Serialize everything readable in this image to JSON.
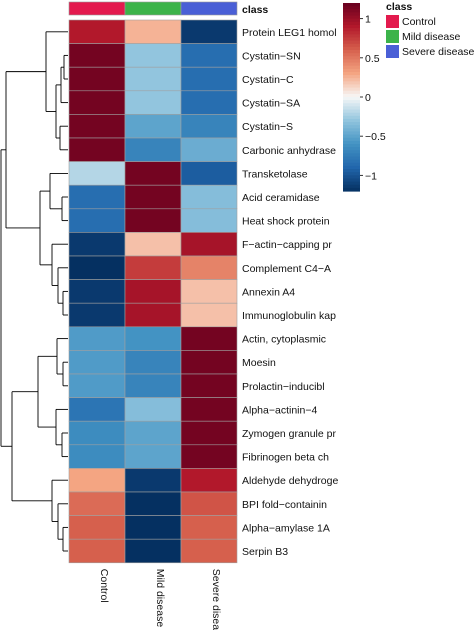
{
  "chart_data": {
    "type": "heatmap",
    "rows": [
      "Protein LEG1 homol",
      "Cystatin−SN",
      "Cystatin−C",
      "Cystatin−SA",
      "Cystatin−S",
      "Carbonic anhydrase",
      "Transketolase",
      "Acid ceramidase",
      "Heat shock protein",
      "F−actin−capping pr",
      "Complement C4−A",
      "Annexin A4",
      "Immunoglobulin kap",
      "Actin, cytoplasmic",
      "Moesin",
      "Prolactin−inducibl",
      "Alpha−actinin−4",
      "Zymogen granule pr",
      "Fibrinogen beta ch",
      "Aldehyde dehydroge",
      "BPI fold−containin",
      "Alpha−amylase 1A",
      "Serpin B3"
    ],
    "columns": [
      "Control",
      "Mild disease",
      "Severe disease"
    ],
    "values": [
      [
        0.9,
        0.25,
        -1.15
      ],
      [
        1.15,
        -0.3,
        -0.85
      ],
      [
        1.15,
        -0.3,
        -0.85
      ],
      [
        1.15,
        -0.3,
        -0.85
      ],
      [
        1.15,
        -0.5,
        -0.7
      ],
      [
        1.15,
        -0.7,
        -0.45
      ],
      [
        -0.2,
        1.15,
        -0.95
      ],
      [
        -0.85,
        1.15,
        -0.35
      ],
      [
        -0.85,
        1.15,
        -0.35
      ],
      [
        -1.15,
        0.2,
        0.95
      ],
      [
        -1.2,
        0.75,
        0.45
      ],
      [
        -1.15,
        0.95,
        0.2
      ],
      [
        -1.15,
        0.95,
        0.2
      ],
      [
        -0.55,
        -0.6,
        1.15
      ],
      [
        -0.55,
        -0.7,
        1.15
      ],
      [
        -0.55,
        -0.7,
        1.15
      ],
      [
        -0.8,
        -0.35,
        1.15
      ],
      [
        -0.65,
        -0.5,
        1.15
      ],
      [
        -0.65,
        -0.5,
        1.15
      ],
      [
        0.3,
        -1.15,
        0.9
      ],
      [
        0.55,
        -1.2,
        0.65
      ],
      [
        0.6,
        -1.2,
        0.6
      ],
      [
        0.6,
        -1.2,
        0.6
      ]
    ],
    "row_groups": [
      {
        "label": "Cystatin−SN",
        "value": ""
      }
    ],
    "scale": {
      "min": -1.2,
      "max": 1.2,
      "ticks": [
        1,
        0.5,
        0,
        -0.5,
        -1
      ],
      "tick_labels": [
        "1",
        "0.5",
        "0",
        "−0.5",
        "−1"
      ]
    },
    "annotation": {
      "title": "class",
      "legend_title": "class",
      "items": [
        {
          "label": "Control",
          "color": "#e31a4e"
        },
        {
          "label": "Mild disease",
          "color": "#3cb34a"
        },
        {
          "label": "Severe disease",
          "color": "#4a5fd6"
        }
      ]
    },
    "colors": {
      "low": "#053061",
      "mid": "#f7f7f7",
      "high": "#67001f"
    }
  }
}
